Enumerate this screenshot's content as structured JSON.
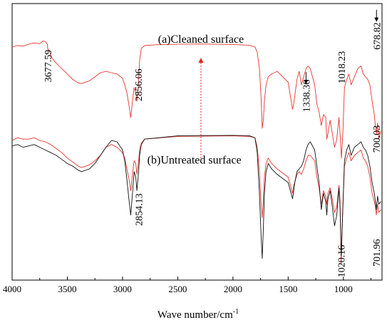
{
  "chart_data": {
    "type": "line",
    "title": "",
    "xlabel": "Wave number/cm",
    "xlabel_superscript": "-1",
    "ylabel": "",
    "x_reversed": true,
    "xlim": [
      4000,
      650
    ],
    "xticks": [
      4000,
      3500,
      3000,
      2500,
      2000,
      1500,
      1000
    ],
    "x_tick_labels": [
      "4000",
      "3500",
      "3000",
      "2500",
      "2000",
      "1500",
      "1000"
    ],
    "y_ticks_shown": false,
    "ylim": [
      -0.02,
      1.0
    ],
    "grid": false,
    "legend": "none",
    "panel_labels": [
      {
        "text": "(a)Cleaned surface",
        "x": 2290,
        "y": 0.855
      },
      {
        "text": "(b)Untreated surface",
        "x": 2350,
        "y": 0.41
      }
    ],
    "arrow": {
      "x": 2290,
      "y_from": 0.43,
      "y_to": 0.8,
      "color": "#e02020",
      "dashed": true
    },
    "series": [
      {
        "color": "#e8352e",
        "x": [
          4000,
          3950,
          3900,
          3850,
          3800,
          3750,
          3720,
          3700,
          3680,
          3677.59,
          3660,
          3640,
          3600,
          3550,
          3500,
          3450,
          3400,
          3370,
          3300,
          3250,
          3200,
          3150,
          3100,
          3050,
          3000,
          2980,
          2960,
          2940,
          2925,
          2910,
          2895,
          2880,
          2870,
          2856.06,
          2845,
          2830,
          2800,
          2700,
          2500,
          2300,
          2000,
          1850,
          1800,
          1780,
          1760,
          1745,
          1735,
          1725,
          1715,
          1700,
          1680,
          1650,
          1600,
          1550,
          1500,
          1480,
          1460,
          1450,
          1440,
          1420,
          1400,
          1380,
          1360,
          1338.36,
          1320,
          1300,
          1260,
          1240,
          1220,
          1200,
          1180,
          1160,
          1150,
          1140,
          1120,
          1100,
          1080,
          1060,
          1040,
          1030,
          1018.23,
          1005,
          990,
          970,
          950,
          930,
          900,
          870,
          840,
          820,
          800,
          780,
          760,
          740,
          720,
          710,
          700.03,
          690,
          678.82,
          660
        ],
        "values": [
          0.84,
          0.845,
          0.843,
          0.85,
          0.855,
          0.852,
          0.862,
          0.86,
          0.85,
          0.835,
          0.82,
          0.8,
          0.78,
          0.76,
          0.74,
          0.72,
          0.707,
          0.705,
          0.715,
          0.73,
          0.745,
          0.75,
          0.745,
          0.74,
          0.725,
          0.7,
          0.67,
          0.62,
          0.58,
          0.64,
          0.69,
          0.67,
          0.64,
          0.7,
          0.79,
          0.835,
          0.845,
          0.848,
          0.85,
          0.851,
          0.849,
          0.846,
          0.84,
          0.82,
          0.76,
          0.65,
          0.54,
          0.57,
          0.64,
          0.7,
          0.73,
          0.74,
          0.75,
          0.73,
          0.71,
          0.66,
          0.61,
          0.63,
          0.66,
          0.72,
          0.75,
          0.7,
          0.73,
          0.76,
          0.77,
          0.76,
          0.7,
          0.63,
          0.6,
          0.55,
          0.59,
          0.58,
          0.5,
          0.52,
          0.57,
          0.52,
          0.47,
          0.5,
          0.58,
          0.52,
          0.43,
          0.52,
          0.69,
          0.72,
          0.74,
          0.7,
          0.73,
          0.76,
          0.77,
          0.74,
          0.73,
          0.72,
          0.7,
          0.64,
          0.59,
          0.55,
          0.52,
          0.56,
          0.5,
          0.53
        ]
      },
      {
        "color": "#e8352e",
        "x": [
          4000,
          3950,
          3900,
          3850,
          3800,
          3750,
          3700,
          3650,
          3600,
          3550,
          3500,
          3450,
          3400,
          3370,
          3300,
          3250,
          3200,
          3150,
          3100,
          3050,
          3000,
          2980,
          2960,
          2940,
          2925,
          2910,
          2895,
          2880,
          2870,
          2854.13,
          2845,
          2830,
          2800,
          2500,
          2000,
          1850,
          1800,
          1780,
          1760,
          1745,
          1735,
          1725,
          1715,
          1700,
          1680,
          1650,
          1600,
          1550,
          1500,
          1480,
          1460,
          1450,
          1440,
          1420,
          1400,
          1380,
          1360,
          1338,
          1320,
          1300,
          1260,
          1240,
          1220,
          1200,
          1180,
          1160,
          1150,
          1140,
          1120,
          1100,
          1080,
          1060,
          1040,
          1030,
          1020.16,
          1005,
          990,
          970,
          950,
          930,
          900,
          870,
          840,
          820,
          800,
          780,
          760,
          740,
          720,
          710,
          701.96,
          690,
          680,
          660
        ],
        "values": [
          0.495,
          0.505,
          0.5,
          0.5,
          0.505,
          0.495,
          0.49,
          0.48,
          0.465,
          0.45,
          0.43,
          0.415,
          0.4,
          0.395,
          0.405,
          0.42,
          0.44,
          0.47,
          0.48,
          0.47,
          0.45,
          0.43,
          0.39,
          0.35,
          0.31,
          0.37,
          0.42,
          0.41,
          0.37,
          0.42,
          0.46,
          0.485,
          0.5,
          0.51,
          0.512,
          0.51,
          0.505,
          0.47,
          0.38,
          0.26,
          0.21,
          0.28,
          0.36,
          0.41,
          0.43,
          0.41,
          0.39,
          0.375,
          0.36,
          0.33,
          0.3,
          0.33,
          0.34,
          0.37,
          0.38,
          0.37,
          0.39,
          0.42,
          0.44,
          0.44,
          0.42,
          0.36,
          0.32,
          0.26,
          0.31,
          0.29,
          0.26,
          0.3,
          0.32,
          0.28,
          0.23,
          0.25,
          0.33,
          0.27,
          0.04,
          0.25,
          0.4,
          0.43,
          0.45,
          0.42,
          0.44,
          0.45,
          0.46,
          0.43,
          0.42,
          0.4,
          0.36,
          0.3,
          0.27,
          0.25,
          0.22,
          0.26,
          0.23,
          0.24
        ]
      },
      {
        "color": "#111111",
        "x": [
          4000,
          3950,
          3900,
          3850,
          3800,
          3750,
          3700,
          3650,
          3600,
          3550,
          3500,
          3450,
          3400,
          3370,
          3300,
          3250,
          3200,
          3150,
          3100,
          3050,
          3000,
          2980,
          2960,
          2940,
          2925,
          2910,
          2895,
          2880,
          2870,
          2854,
          2845,
          2830,
          2800,
          2500,
          2000,
          1850,
          1800,
          1780,
          1760,
          1745,
          1735,
          1725,
          1715,
          1700,
          1680,
          1650,
          1600,
          1550,
          1500,
          1480,
          1460,
          1450,
          1440,
          1420,
          1400,
          1380,
          1360,
          1338,
          1320,
          1300,
          1260,
          1240,
          1220,
          1200,
          1180,
          1160,
          1150,
          1140,
          1120,
          1100,
          1080,
          1060,
          1040,
          1030,
          1020,
          1005,
          990,
          970,
          950,
          930,
          900,
          870,
          840,
          820,
          800,
          780,
          760,
          740,
          720,
          710,
          702,
          690,
          680,
          660
        ],
        "values": [
          0.475,
          0.48,
          0.47,
          0.475,
          0.48,
          0.47,
          0.46,
          0.45,
          0.44,
          0.425,
          0.41,
          0.4,
          0.385,
          0.38,
          0.39,
          0.41,
          0.44,
          0.47,
          0.495,
          0.49,
          0.46,
          0.42,
          0.35,
          0.27,
          0.22,
          0.3,
          0.38,
          0.36,
          0.31,
          0.38,
          0.44,
          0.48,
          0.5,
          0.512,
          0.514,
          0.512,
          0.505,
          0.45,
          0.3,
          0.14,
          0.06,
          0.17,
          0.3,
          0.38,
          0.41,
          0.39,
          0.37,
          0.355,
          0.34,
          0.31,
          0.28,
          0.31,
          0.34,
          0.38,
          0.39,
          0.4,
          0.42,
          0.46,
          0.48,
          0.49,
          0.46,
          0.4,
          0.34,
          0.24,
          0.3,
          0.27,
          0.22,
          0.28,
          0.31,
          0.25,
          0.18,
          0.22,
          0.32,
          0.25,
          0.07,
          0.24,
          0.42,
          0.46,
          0.48,
          0.44,
          0.47,
          0.48,
          0.49,
          0.47,
          0.46,
          0.44,
          0.4,
          0.34,
          0.3,
          0.27,
          0.24,
          0.29,
          0.26,
          0.27
        ]
      }
    ],
    "peak_labels": [
      {
        "text": "3677.59",
        "x": 3677.59,
        "y": 0.71
      },
      {
        "text": "2856.06",
        "x": 2856.06,
        "y": 0.64
      },
      {
        "text": "1338.36",
        "x": 1338.36,
        "y": 0.6,
        "arrow": true
      },
      {
        "text": "1018.23",
        "x": 1018.23,
        "y": 0.705
      },
      {
        "text": "678.82",
        "x": 700,
        "y": 0.83,
        "arrow": true
      },
      {
        "text": "700.03",
        "x": 700.03,
        "y": 0.45
      },
      {
        "text": "2854.13",
        "x": 2854.13,
        "y": 0.18
      },
      {
        "text": "1020.16",
        "x": 1020.16,
        "y": -0.01
      },
      {
        "text": "701.96",
        "x": 701.96,
        "y": 0.03
      }
    ]
  }
}
